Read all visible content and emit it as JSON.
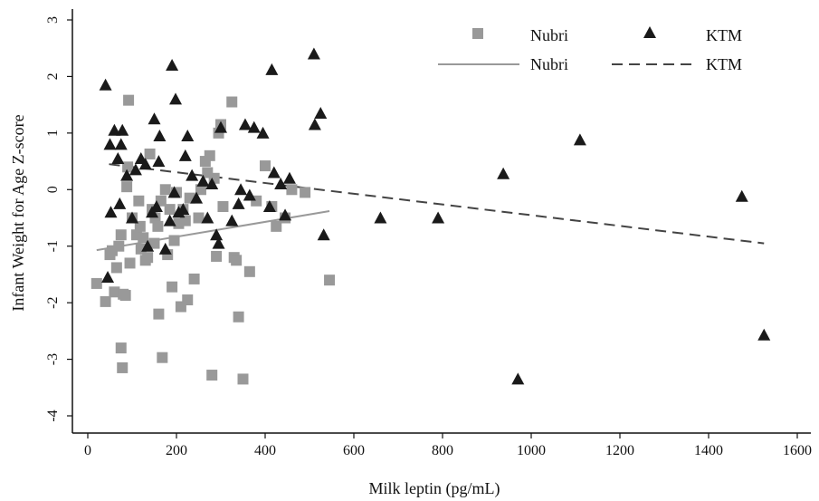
{
  "chart_data": {
    "type": "scatter",
    "xlabel": "Milk leptin (pg/mL)",
    "ylabel": "Infant Weight for Age Z-score",
    "xlim": [
      0,
      1600
    ],
    "ylim": [
      -4,
      3
    ],
    "xticks": [
      0,
      200,
      400,
      600,
      800,
      1000,
      1200,
      1400,
      1600
    ],
    "yticks": [
      -4,
      -3,
      -2,
      -1,
      0,
      1,
      2,
      3
    ],
    "grid": false,
    "legend_position": "top-right",
    "colors": {
      "nubri": "#999999",
      "ktm": "#1a1a1a"
    },
    "legend": {
      "nubri_marker": "Nubri",
      "ktm_marker": "KTM",
      "nubri_line": "Nubri",
      "ktm_line": "KTM"
    },
    "series": [
      {
        "name": "Nubri",
        "marker": "square",
        "points": [
          [
            20,
            -1.66
          ],
          [
            40,
            -1.98
          ],
          [
            50,
            -1.15
          ],
          [
            55,
            -1.08
          ],
          [
            60,
            -1.81
          ],
          [
            65,
            -1.38
          ],
          [
            70,
            -1.0
          ],
          [
            75,
            -0.8
          ],
          [
            75,
            -2.8
          ],
          [
            78,
            -3.15
          ],
          [
            80,
            -1.85
          ],
          [
            85,
            -1.87
          ],
          [
            88,
            0.05
          ],
          [
            90,
            0.4
          ],
          [
            92,
            1.58
          ],
          [
            95,
            -1.3
          ],
          [
            100,
            -0.5
          ],
          [
            110,
            -0.8
          ],
          [
            115,
            -0.2
          ],
          [
            118,
            -0.65
          ],
          [
            120,
            -1.05
          ],
          [
            125,
            -0.85
          ],
          [
            130,
            -1.25
          ],
          [
            135,
            -1.2
          ],
          [
            140,
            0.63
          ],
          [
            145,
            -0.35
          ],
          [
            150,
            -0.95
          ],
          [
            152,
            -0.5
          ],
          [
            158,
            -0.65
          ],
          [
            160,
            -2.2
          ],
          [
            165,
            -0.2
          ],
          [
            168,
            -2.97
          ],
          [
            175,
            0.0
          ],
          [
            180,
            -1.15
          ],
          [
            185,
            -0.35
          ],
          [
            190,
            -1.72
          ],
          [
            195,
            -0.9
          ],
          [
            200,
            -0.05
          ],
          [
            205,
            -0.6
          ],
          [
            210,
            -2.07
          ],
          [
            215,
            -0.35
          ],
          [
            220,
            -0.55
          ],
          [
            225,
            -1.95
          ],
          [
            230,
            -0.15
          ],
          [
            240,
            -1.58
          ],
          [
            250,
            -0.5
          ],
          [
            255,
            0.0
          ],
          [
            265,
            0.5
          ],
          [
            270,
            0.3
          ],
          [
            275,
            0.6
          ],
          [
            280,
            -3.28
          ],
          [
            285,
            0.2
          ],
          [
            290,
            -1.18
          ],
          [
            295,
            1.0
          ],
          [
            300,
            1.15
          ],
          [
            305,
            -0.3
          ],
          [
            325,
            1.55
          ],
          [
            330,
            -1.2
          ],
          [
            335,
            -1.25
          ],
          [
            340,
            -2.25
          ],
          [
            350,
            -3.35
          ],
          [
            365,
            -1.45
          ],
          [
            380,
            -0.2
          ],
          [
            400,
            0.42
          ],
          [
            415,
            -0.3
          ],
          [
            425,
            -0.65
          ],
          [
            445,
            -0.5
          ],
          [
            460,
            0.0
          ],
          [
            490,
            -0.05
          ],
          [
            545,
            -1.6
          ]
        ]
      },
      {
        "name": "KTM",
        "marker": "triangle",
        "points": [
          [
            40,
            1.85
          ],
          [
            45,
            -1.55
          ],
          [
            50,
            0.8
          ],
          [
            52,
            -0.4
          ],
          [
            60,
            1.05
          ],
          [
            68,
            0.55
          ],
          [
            72,
            -0.25
          ],
          [
            75,
            0.8
          ],
          [
            78,
            1.05
          ],
          [
            88,
            0.25
          ],
          [
            100,
            -0.5
          ],
          [
            108,
            0.35
          ],
          [
            120,
            0.55
          ],
          [
            130,
            0.45
          ],
          [
            135,
            -1.0
          ],
          [
            145,
            -0.4
          ],
          [
            150,
            1.25
          ],
          [
            155,
            -0.3
          ],
          [
            160,
            0.5
          ],
          [
            162,
            0.95
          ],
          [
            175,
            -1.05
          ],
          [
            185,
            -0.55
          ],
          [
            190,
            2.2
          ],
          [
            195,
            -0.05
          ],
          [
            198,
            1.6
          ],
          [
            205,
            -0.4
          ],
          [
            215,
            -0.35
          ],
          [
            220,
            0.6
          ],
          [
            225,
            0.95
          ],
          [
            235,
            0.25
          ],
          [
            245,
            -0.15
          ],
          [
            260,
            0.15
          ],
          [
            270,
            -0.5
          ],
          [
            280,
            0.1
          ],
          [
            290,
            -0.8
          ],
          [
            295,
            -0.95
          ],
          [
            300,
            1.1
          ],
          [
            325,
            -0.55
          ],
          [
            340,
            -0.25
          ],
          [
            345,
            0.0
          ],
          [
            355,
            1.15
          ],
          [
            365,
            -0.1
          ],
          [
            375,
            1.1
          ],
          [
            395,
            1.0
          ],
          [
            410,
            -0.3
          ],
          [
            415,
            2.12
          ],
          [
            420,
            0.3
          ],
          [
            435,
            0.1
          ],
          [
            445,
            -0.45
          ],
          [
            455,
            0.2
          ],
          [
            510,
            2.4
          ],
          [
            512,
            1.15
          ],
          [
            525,
            1.35
          ],
          [
            532,
            -0.8
          ],
          [
            660,
            -0.5
          ],
          [
            790,
            -0.5
          ],
          [
            937,
            0.28
          ],
          [
            970,
            -3.35
          ],
          [
            1110,
            0.88
          ],
          [
            1475,
            -0.12
          ],
          [
            1525,
            -2.57
          ]
        ]
      }
    ],
    "fit_lines": [
      {
        "name": "Nubri",
        "style": "solid",
        "x": [
          20,
          545
        ],
        "y": [
          -1.07,
          -0.38
        ]
      },
      {
        "name": "KTM",
        "style": "dashed",
        "x": [
          48,
          1525
        ],
        "y": [
          0.45,
          -0.95
        ]
      }
    ]
  }
}
